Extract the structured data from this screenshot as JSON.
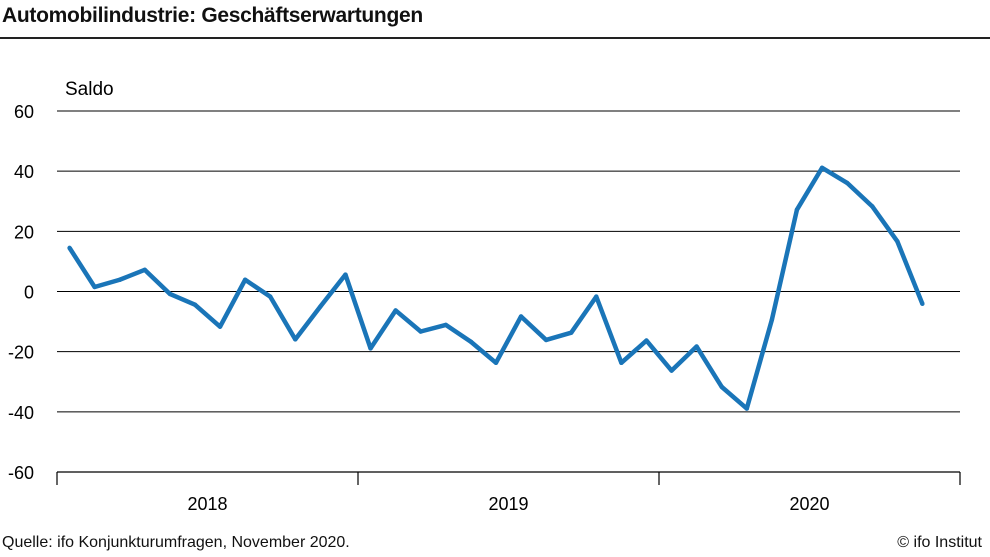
{
  "title": "Automobilindustrie: Geschäftserwartungen",
  "source": "Quelle: ifo Konjunkturumfragen, November 2020.",
  "copyright": "© ifo Institut",
  "colors": {
    "line": "#1a75b8",
    "grid": "#000000"
  },
  "chart_data": {
    "type": "line",
    "title": "Automobilindustrie: Geschäftserwartungen",
    "ylabel": "Saldo",
    "ylim": [
      -60,
      60
    ],
    "yticks": [
      60,
      40,
      20,
      0,
      -20,
      -40,
      -60
    ],
    "xtick_labels": [
      "2018",
      "2019",
      "2020"
    ],
    "grid": true,
    "x": [
      "2018-01",
      "2018-02",
      "2018-03",
      "2018-04",
      "2018-05",
      "2018-06",
      "2018-07",
      "2018-08",
      "2018-09",
      "2018-10",
      "2018-11",
      "2018-12",
      "2019-01",
      "2019-02",
      "2019-03",
      "2019-04",
      "2019-05",
      "2019-06",
      "2019-07",
      "2019-08",
      "2019-09",
      "2019-10",
      "2019-11",
      "2019-12",
      "2020-01",
      "2020-02",
      "2020-03",
      "2020-04",
      "2020-05",
      "2020-06",
      "2020-07",
      "2020-08",
      "2020-09",
      "2020-10",
      "2020-11"
    ],
    "values": [
      14.5,
      1.5,
      3.9,
      7.2,
      -0.8,
      -4.4,
      -11.7,
      3.9,
      -1.7,
      -15.9,
      -5.0,
      5.6,
      -18.9,
      -6.3,
      -13.3,
      -11.1,
      -16.7,
      -23.7,
      -8.3,
      -16.1,
      -13.7,
      -1.7,
      -23.7,
      -16.3,
      -26.3,
      -18.3,
      -31.7,
      -38.9,
      -9.4,
      27.2,
      41.1,
      36.1,
      28.3,
      16.7,
      -4.1
    ]
  }
}
